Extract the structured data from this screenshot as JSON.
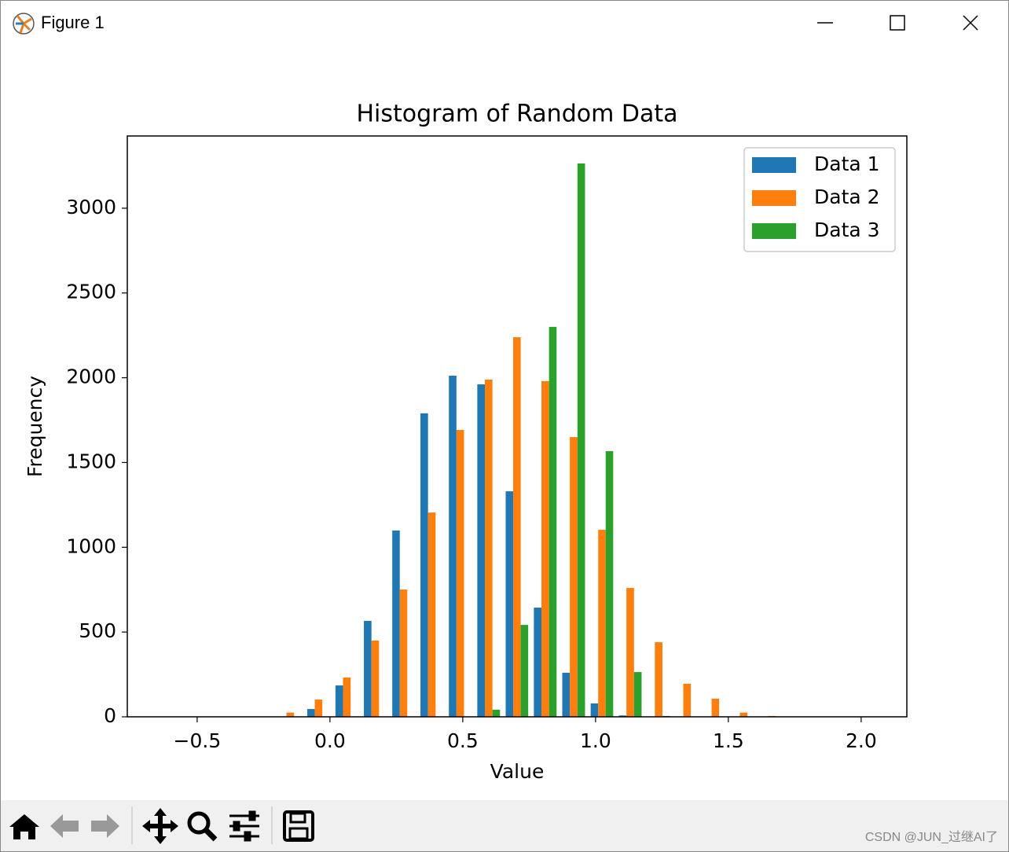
{
  "window": {
    "title": "Figure 1"
  },
  "watermark": "CSDN @JUN_过继AI了",
  "chart_data": {
    "type": "histogram",
    "title": "Histogram of Random Data",
    "xlabel": "Value",
    "ylabel": "Frequency",
    "bins": [
      -0.63,
      -0.523,
      -0.417,
      -0.31,
      -0.203,
      -0.096,
      0.01,
      0.117,
      0.224,
      0.33,
      0.437,
      0.544,
      0.651,
      0.757,
      0.864,
      0.971,
      1.077,
      1.184,
      1.291,
      1.398,
      1.504,
      1.611,
      1.718,
      1.824,
      1.931,
      2.038
    ],
    "series": [
      {
        "name": "Data 1",
        "color": "#1f77b4",
        "values": [
          0,
          0,
          0,
          0,
          0,
          46,
          185,
          566,
          1099,
          1790,
          2012,
          1961,
          1330,
          644,
          260,
          79,
          8,
          0,
          0,
          0,
          0,
          0,
          0,
          0,
          0
        ]
      },
      {
        "name": "Data 2",
        "color": "#ff7f0e",
        "values": [
          0,
          0,
          0,
          0,
          25,
          102,
          232,
          450,
          751,
          1205,
          1692,
          1989,
          2239,
          1980,
          1650,
          1103,
          760,
          440,
          195,
          107,
          25,
          5,
          0,
          0,
          0
        ]
      },
      {
        "name": "Data 3",
        "color": "#2ca02c",
        "values": [
          0,
          0,
          0,
          0,
          0,
          0,
          0,
          0,
          0,
          0,
          0,
          42,
          542,
          2300,
          3264,
          1567,
          264,
          5,
          0,
          0,
          0,
          0,
          0,
          0,
          0
        ]
      }
    ],
    "xlim": [
      -0.763,
      2.172
    ],
    "ylim": [
      0,
      3426
    ],
    "xticks": [
      {
        "value": -0.5,
        "label": "−0.5"
      },
      {
        "value": 0,
        "label": "0.0"
      },
      {
        "value": 0.5,
        "label": "0.5"
      },
      {
        "value": 1,
        "label": "1.0"
      },
      {
        "value": 1.5,
        "label": "1.5"
      },
      {
        "value": 2,
        "label": "2.0"
      }
    ],
    "yticks": [
      0,
      500,
      1000,
      1500,
      2000,
      2500,
      3000
    ],
    "legend": "upper right",
    "grid": false
  }
}
